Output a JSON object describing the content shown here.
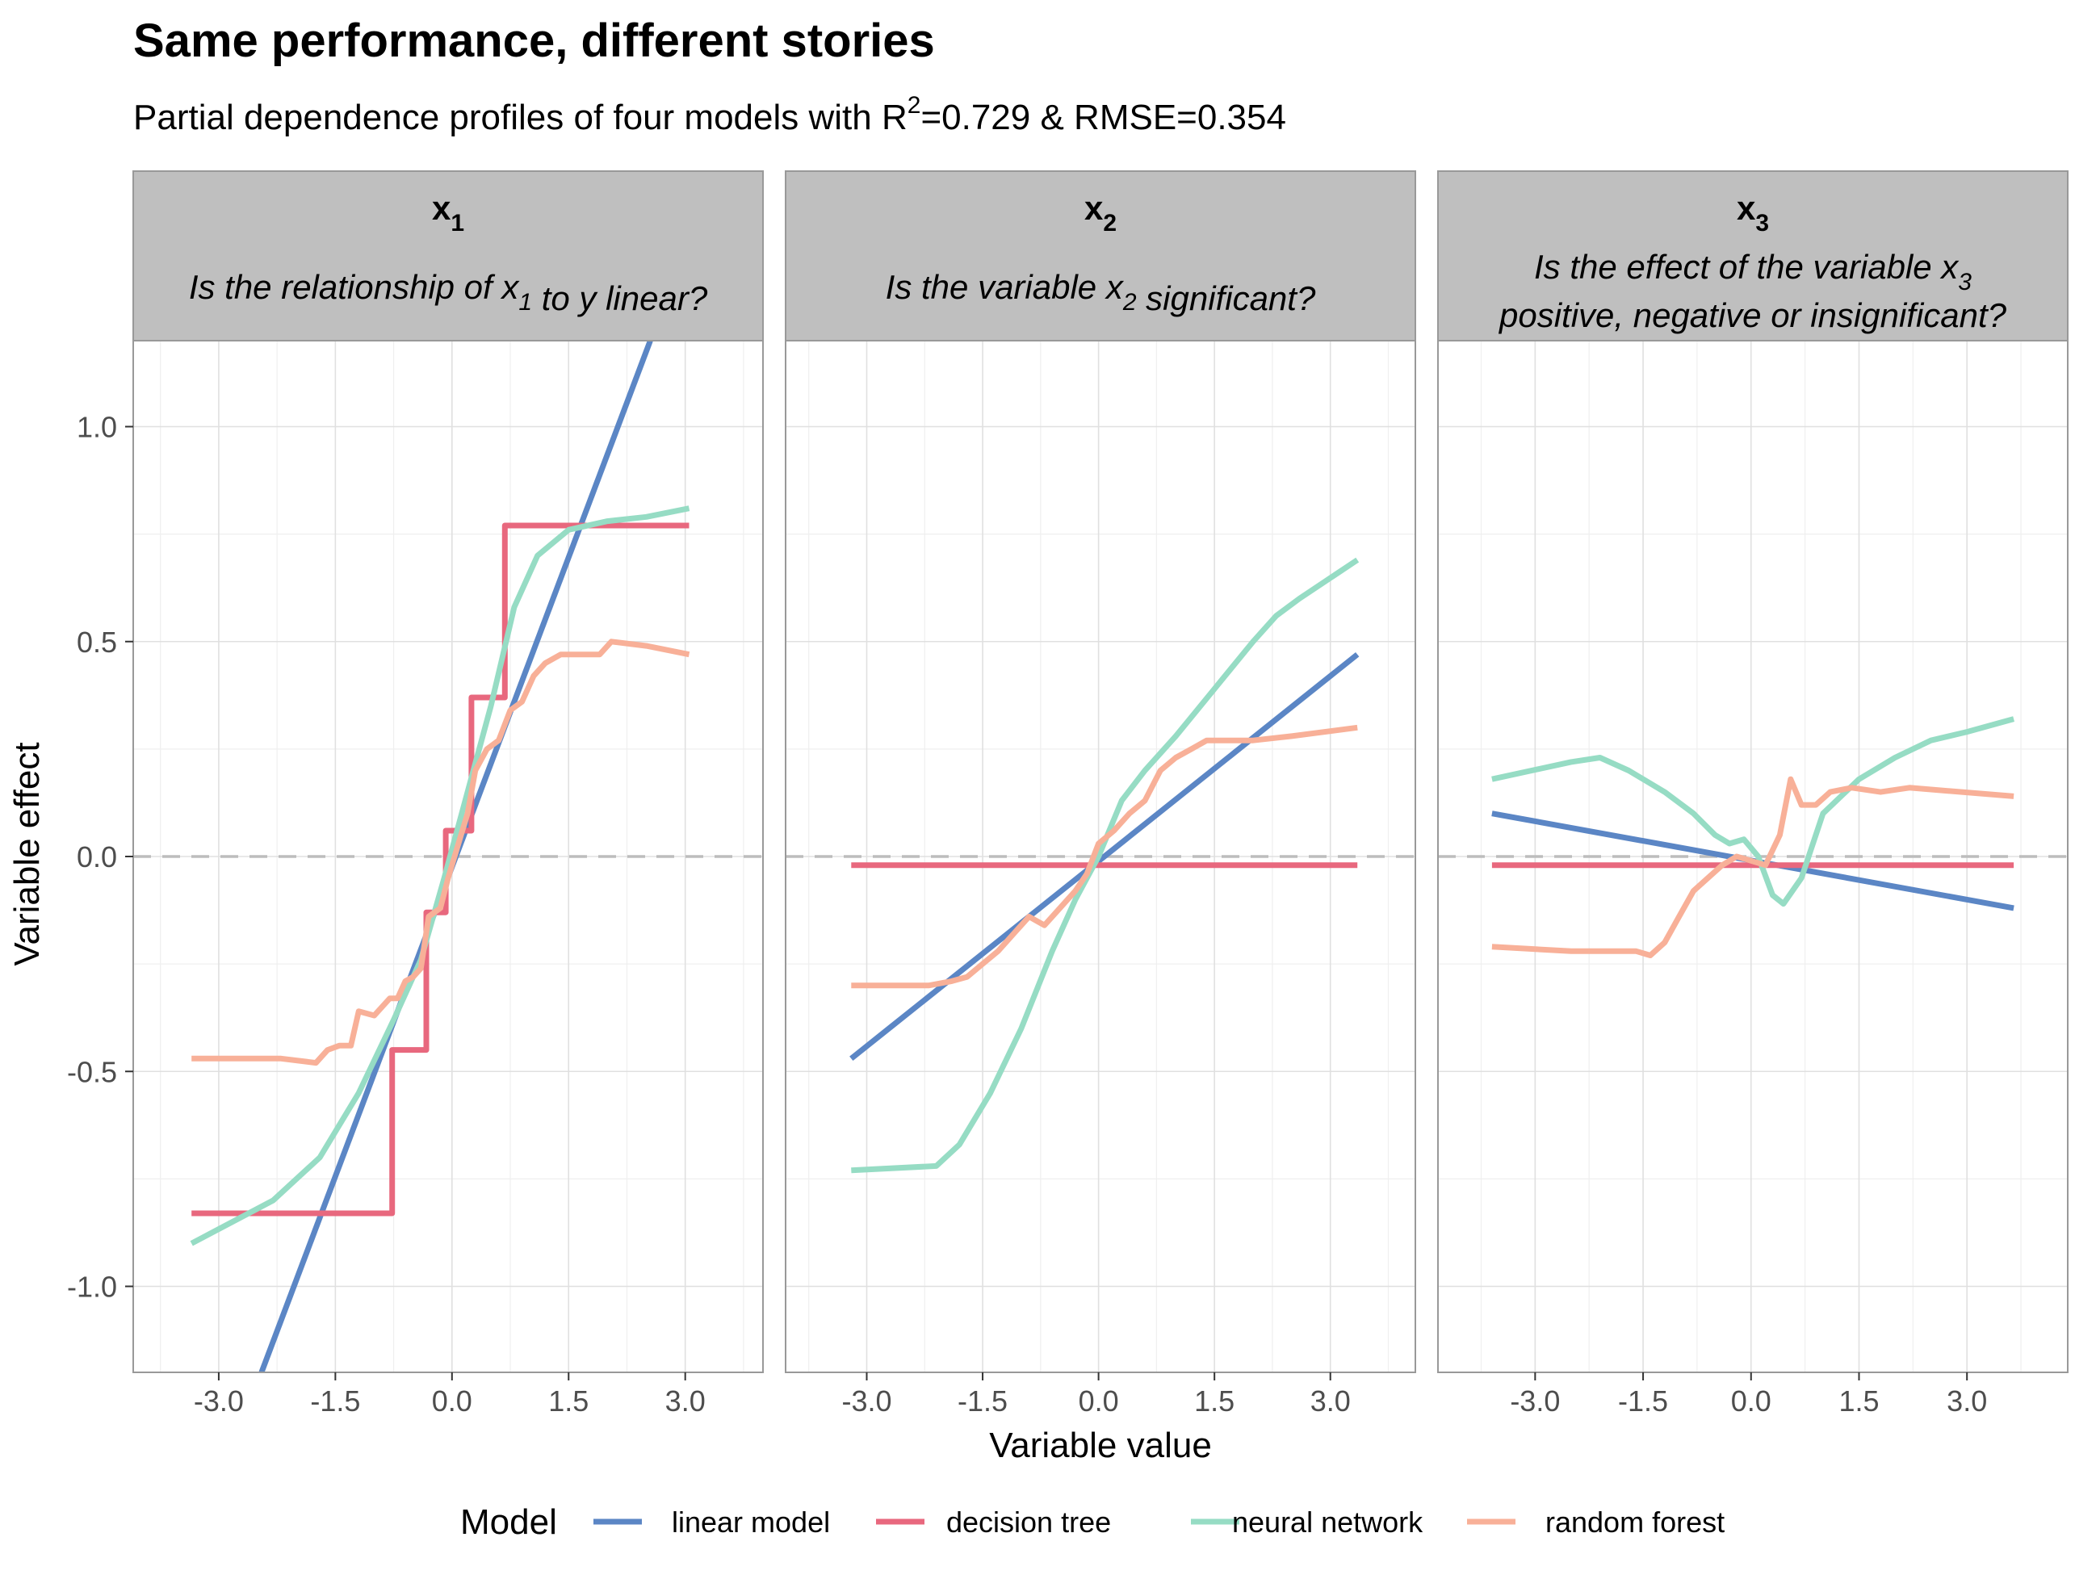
{
  "title": "Same performance, different stories",
  "subtitle": {
    "prefix": "Partial dependence profiles of four models with R",
    "sup": "2",
    "suffix": "=0.729 & RMSE=0.354"
  },
  "legend": {
    "title": "Model",
    "entries": [
      "linear model",
      "decision tree",
      "neural network",
      "random forest"
    ]
  },
  "colors": {
    "linear model": "#5b86c5",
    "decision tree": "#e8687e",
    "neural network": "#96dcc4",
    "random forest": "#f8b098",
    "strip_bg": "#bfbfbf",
    "grid": "#e0e0e0",
    "zero_line": "#bdbdbd"
  },
  "chart_data": {
    "type": "line",
    "xlabel": "Variable value",
    "ylabel": "Variable effect",
    "ylim": [
      -1.2,
      1.2
    ],
    "yticks": [
      -1.0,
      -0.5,
      0.0,
      0.5,
      1.0
    ],
    "ytick_labels": [
      "-1.0",
      "-0.5",
      "0.0",
      "0.5",
      "1.0"
    ],
    "xticks": [
      -3.0,
      -1.5,
      0.0,
      1.5,
      3.0
    ],
    "xtick_labels": [
      "-3.0",
      "-1.5",
      "0.0",
      "1.5",
      "3.0"
    ],
    "reference_line": 0,
    "panels": [
      {
        "var": "x",
        "sub": "1",
        "question": [
          {
            "t": "Is the relationship of x"
          },
          {
            "s": "1"
          },
          {
            "t": " to y linear?"
          }
        ],
        "question2": [],
        "xlim": [
          -4.1,
          4.0
        ],
        "series": [
          {
            "name": "linear model",
            "points": [
              [
                -2.45,
                -1.2
              ],
              [
                2.55,
                1.2
              ]
            ]
          },
          {
            "name": "decision tree",
            "points": [
              [
                -3.35,
                -0.83
              ],
              [
                -0.77,
                -0.83
              ],
              [
                -0.77,
                -0.45
              ],
              [
                -0.33,
                -0.45
              ],
              [
                -0.33,
                -0.13
              ],
              [
                -0.08,
                -0.13
              ],
              [
                -0.08,
                0.06
              ],
              [
                0.25,
                0.06
              ],
              [
                0.25,
                0.37
              ],
              [
                0.68,
                0.37
              ],
              [
                0.68,
                0.77
              ],
              [
                3.05,
                0.77
              ]
            ]
          },
          {
            "name": "neural network",
            "points": [
              [
                -3.35,
                -0.9
              ],
              [
                -2.3,
                -0.8
              ],
              [
                -1.7,
                -0.7
              ],
              [
                -1.2,
                -0.55
              ],
              [
                -0.75,
                -0.38
              ],
              [
                -0.4,
                -0.24
              ],
              [
                -0.1,
                -0.05
              ],
              [
                0.2,
                0.15
              ],
              [
                0.5,
                0.35
              ],
              [
                0.8,
                0.58
              ],
              [
                1.1,
                0.7
              ],
              [
                1.5,
                0.76
              ],
              [
                2.0,
                0.78
              ],
              [
                2.5,
                0.79
              ],
              [
                3.05,
                0.81
              ]
            ]
          },
          {
            "name": "random forest",
            "points": [
              [
                -3.35,
                -0.47
              ],
              [
                -2.2,
                -0.47
              ],
              [
                -1.75,
                -0.48
              ],
              [
                -1.6,
                -0.45
              ],
              [
                -1.45,
                -0.44
              ],
              [
                -1.3,
                -0.44
              ],
              [
                -1.2,
                -0.36
              ],
              [
                -1.0,
                -0.37
              ],
              [
                -0.8,
                -0.33
              ],
              [
                -0.7,
                -0.33
              ],
              [
                -0.6,
                -0.29
              ],
              [
                -0.5,
                -0.28
              ],
              [
                -0.4,
                -0.26
              ],
              [
                -0.3,
                -0.14
              ],
              [
                -0.15,
                -0.12
              ],
              [
                -0.05,
                -0.05
              ],
              [
                0.1,
                0.04
              ],
              [
                0.2,
                0.1
              ],
              [
                0.3,
                0.2
              ],
              [
                0.45,
                0.25
              ],
              [
                0.6,
                0.27
              ],
              [
                0.75,
                0.34
              ],
              [
                0.9,
                0.36
              ],
              [
                1.05,
                0.42
              ],
              [
                1.2,
                0.45
              ],
              [
                1.4,
                0.47
              ],
              [
                1.6,
                0.47
              ],
              [
                1.9,
                0.47
              ],
              [
                2.05,
                0.5
              ],
              [
                2.5,
                0.49
              ],
              [
                3.05,
                0.47
              ]
            ]
          }
        ]
      },
      {
        "var": "x",
        "sub": "2",
        "question": [
          {
            "t": "Is the variable x"
          },
          {
            "s": "2"
          },
          {
            "t": " significant?"
          }
        ],
        "question2": [],
        "xlim": [
          -4.05,
          4.1
        ],
        "series": [
          {
            "name": "linear model",
            "points": [
              [
                -3.2,
                -0.47
              ],
              [
                3.35,
                0.47
              ]
            ]
          },
          {
            "name": "decision tree",
            "points": [
              [
                -3.2,
                -0.02
              ],
              [
                3.35,
                -0.02
              ]
            ]
          },
          {
            "name": "neural network",
            "points": [
              [
                -3.2,
                -0.73
              ],
              [
                -2.1,
                -0.72
              ],
              [
                -1.8,
                -0.67
              ],
              [
                -1.4,
                -0.55
              ],
              [
                -1.0,
                -0.4
              ],
              [
                -0.6,
                -0.22
              ],
              [
                -0.3,
                -0.1
              ],
              [
                0.0,
                0.0
              ],
              [
                0.3,
                0.13
              ],
              [
                0.6,
                0.2
              ],
              [
                1.0,
                0.28
              ],
              [
                1.5,
                0.39
              ],
              [
                2.0,
                0.5
              ],
              [
                2.3,
                0.56
              ],
              [
                2.6,
                0.6
              ],
              [
                3.35,
                0.69
              ]
            ]
          },
          {
            "name": "random forest",
            "points": [
              [
                -3.2,
                -0.3
              ],
              [
                -2.2,
                -0.3
              ],
              [
                -1.9,
                -0.29
              ],
              [
                -1.7,
                -0.28
              ],
              [
                -1.5,
                -0.25
              ],
              [
                -1.3,
                -0.22
              ],
              [
                -1.1,
                -0.18
              ],
              [
                -0.9,
                -0.14
              ],
              [
                -0.7,
                -0.16
              ],
              [
                -0.5,
                -0.12
              ],
              [
                -0.3,
                -0.08
              ],
              [
                -0.15,
                -0.04
              ],
              [
                0.0,
                0.03
              ],
              [
                0.2,
                0.06
              ],
              [
                0.4,
                0.1
              ],
              [
                0.6,
                0.13
              ],
              [
                0.8,
                0.2
              ],
              [
                1.0,
                0.23
              ],
              [
                1.2,
                0.25
              ],
              [
                1.4,
                0.27
              ],
              [
                1.6,
                0.27
              ],
              [
                2.0,
                0.27
              ],
              [
                2.5,
                0.28
              ],
              [
                3.35,
                0.3
              ]
            ]
          }
        ]
      },
      {
        "var": "x",
        "sub": "3",
        "question": [
          {
            "t": "Is the effect of the variable x"
          },
          {
            "s": "3"
          }
        ],
        "question2": [
          {
            "t": "positive, negative or insignificant?"
          }
        ],
        "xlim": [
          -4.35,
          4.4
        ],
        "series": [
          {
            "name": "linear model",
            "points": [
              [
                -3.6,
                0.1
              ],
              [
                3.65,
                -0.12
              ]
            ]
          },
          {
            "name": "decision tree",
            "points": [
              [
                -3.6,
                -0.02
              ],
              [
                3.65,
                -0.02
              ]
            ]
          },
          {
            "name": "neural network",
            "points": [
              [
                -3.6,
                0.18
              ],
              [
                -2.5,
                0.22
              ],
              [
                -2.1,
                0.23
              ],
              [
                -1.7,
                0.2
              ],
              [
                -1.2,
                0.15
              ],
              [
                -0.8,
                0.1
              ],
              [
                -0.5,
                0.05
              ],
              [
                -0.3,
                0.03
              ],
              [
                -0.1,
                0.04
              ],
              [
                0.1,
                0.0
              ],
              [
                0.3,
                -0.09
              ],
              [
                0.45,
                -0.11
              ],
              [
                0.7,
                -0.05
              ],
              [
                1.0,
                0.1
              ],
              [
                1.5,
                0.18
              ],
              [
                2.0,
                0.23
              ],
              [
                2.5,
                0.27
              ],
              [
                3.0,
                0.29
              ],
              [
                3.65,
                0.32
              ]
            ]
          },
          {
            "name": "random forest",
            "points": [
              [
                -3.6,
                -0.21
              ],
              [
                -2.5,
                -0.22
              ],
              [
                -2.0,
                -0.22
              ],
              [
                -1.6,
                -0.22
              ],
              [
                -1.4,
                -0.23
              ],
              [
                -1.2,
                -0.2
              ],
              [
                -1.0,
                -0.14
              ],
              [
                -0.8,
                -0.08
              ],
              [
                -0.6,
                -0.05
              ],
              [
                -0.4,
                -0.02
              ],
              [
                -0.2,
                0.0
              ],
              [
                0.0,
                -0.01
              ],
              [
                0.2,
                -0.02
              ],
              [
                0.4,
                0.05
              ],
              [
                0.55,
                0.18
              ],
              [
                0.7,
                0.12
              ],
              [
                0.9,
                0.12
              ],
              [
                1.1,
                0.15
              ],
              [
                1.4,
                0.16
              ],
              [
                1.8,
                0.15
              ],
              [
                2.2,
                0.16
              ],
              [
                3.65,
                0.14
              ]
            ]
          }
        ]
      }
    ]
  }
}
